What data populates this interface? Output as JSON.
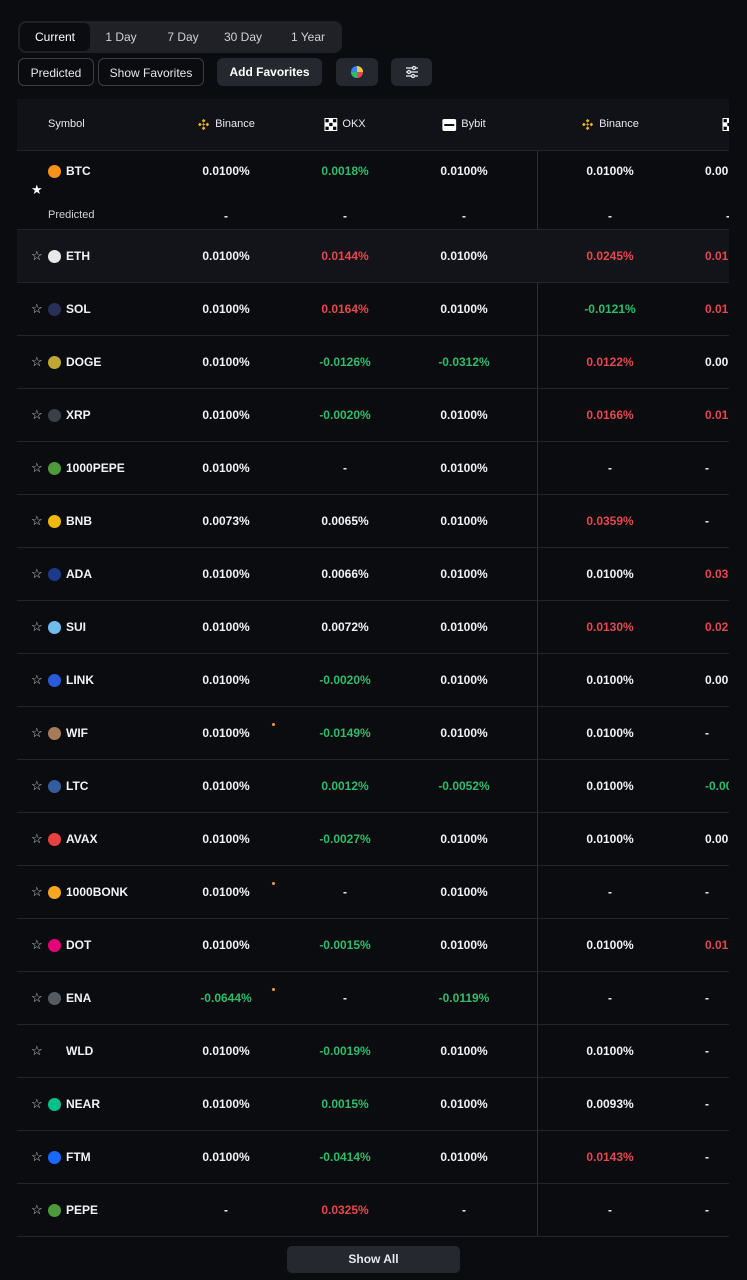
{
  "tabs": {
    "items": [
      "Current",
      "1 Day",
      "7 Day",
      "30 Day",
      "1 Year"
    ],
    "selected": 0
  },
  "toolbar": {
    "predicted": "Predicted",
    "show_favorites": "Show Favorites",
    "add_favorites": "Add Favorites"
  },
  "table": {
    "symbol_header": "Symbol",
    "columns": [
      {
        "label": "Binance",
        "icon": "binance"
      },
      {
        "label": "OKX",
        "icon": "okx"
      },
      {
        "label": "Bybit",
        "icon": "bybit"
      },
      {
        "label": "Binance",
        "icon": "binance"
      },
      {
        "icon": "okx"
      }
    ],
    "predicted_label": "Predicted",
    "rows": [
      {
        "symbol": "BTC",
        "icon": "#f7931a",
        "favorite": true,
        "cells": [
          {
            "text": "0.0100%",
            "color": "white"
          },
          {
            "text": "0.0018%",
            "color": "green"
          },
          {
            "text": "0.0100%",
            "color": "white"
          },
          {
            "text": "0.0100%",
            "color": "white"
          },
          {
            "text": "0.00",
            "color": "white"
          }
        ],
        "predicted": [
          "-",
          "-",
          "-",
          "-",
          "-"
        ]
      },
      {
        "symbol": "ETH",
        "icon": "#e8e8e8",
        "highlight": true,
        "cells": [
          {
            "text": "0.0100%",
            "color": "white"
          },
          {
            "text": "0.0144%",
            "color": "red"
          },
          {
            "text": "0.0100%",
            "color": "white"
          },
          {
            "text": "0.0245%",
            "color": "red"
          },
          {
            "text": "0.01",
            "color": "red"
          }
        ]
      },
      {
        "symbol": "SOL",
        "icon": "#2a2f5a",
        "cells": [
          {
            "text": "0.0100%",
            "color": "white"
          },
          {
            "text": "0.0164%",
            "color": "red"
          },
          {
            "text": "0.0100%",
            "color": "white"
          },
          {
            "text": "-0.0121%",
            "color": "green"
          },
          {
            "text": "0.01",
            "color": "red"
          }
        ]
      },
      {
        "symbol": "DOGE",
        "icon": "#c2a633",
        "cells": [
          {
            "text": "0.0100%",
            "color": "white"
          },
          {
            "text": "-0.0126%",
            "color": "green"
          },
          {
            "text": "-0.0312%",
            "color": "green"
          },
          {
            "text": "0.0122%",
            "color": "red"
          },
          {
            "text": "0.00",
            "color": "white"
          }
        ]
      },
      {
        "symbol": "XRP",
        "icon": "#3a3f4a",
        "cells": [
          {
            "text": "0.0100%",
            "color": "white"
          },
          {
            "text": "-0.0020%",
            "color": "green"
          },
          {
            "text": "0.0100%",
            "color": "white"
          },
          {
            "text": "0.0166%",
            "color": "red"
          },
          {
            "text": "0.01",
            "color": "red"
          }
        ]
      },
      {
        "symbol": "1000PEPE",
        "icon": "#4c9a3c",
        "cells": [
          {
            "text": "0.0100%",
            "color": "white"
          },
          {
            "text": "-",
            "color": "white"
          },
          {
            "text": "0.0100%",
            "color": "white"
          },
          {
            "text": "-",
            "color": "white"
          },
          {
            "text": "-",
            "color": "white"
          }
        ]
      },
      {
        "symbol": "BNB",
        "icon": "#f0b90b",
        "cells": [
          {
            "text": "0.0073%",
            "color": "white"
          },
          {
            "text": "0.0065%",
            "color": "white"
          },
          {
            "text": "0.0100%",
            "color": "white"
          },
          {
            "text": "0.0359%",
            "color": "red"
          },
          {
            "text": "-",
            "color": "white"
          }
        ]
      },
      {
        "symbol": "ADA",
        "icon": "#1d3a8a",
        "cells": [
          {
            "text": "0.0100%",
            "color": "white"
          },
          {
            "text": "0.0066%",
            "color": "white"
          },
          {
            "text": "0.0100%",
            "color": "white"
          },
          {
            "text": "0.0100%",
            "color": "white"
          },
          {
            "text": "0.03",
            "color": "red"
          }
        ]
      },
      {
        "symbol": "SUI",
        "icon": "#6fbcf0",
        "cells": [
          {
            "text": "0.0100%",
            "color": "white"
          },
          {
            "text": "0.0072%",
            "color": "white"
          },
          {
            "text": "0.0100%",
            "color": "white"
          },
          {
            "text": "0.0130%",
            "color": "red"
          },
          {
            "text": "0.02",
            "color": "red"
          }
        ]
      },
      {
        "symbol": "LINK",
        "icon": "#2a5ada",
        "cells": [
          {
            "text": "0.0100%",
            "color": "white"
          },
          {
            "text": "-0.0020%",
            "color": "green"
          },
          {
            "text": "0.0100%",
            "color": "white"
          },
          {
            "text": "0.0100%",
            "color": "white"
          },
          {
            "text": "0.00",
            "color": "white"
          }
        ]
      },
      {
        "symbol": "WIF",
        "icon": "#a57b5a",
        "cells": [
          {
            "text": "0.0100%",
            "color": "white",
            "dot": true
          },
          {
            "text": "-0.0149%",
            "color": "green"
          },
          {
            "text": "0.0100%",
            "color": "white"
          },
          {
            "text": "0.0100%",
            "color": "white"
          },
          {
            "text": "-",
            "color": "white"
          }
        ]
      },
      {
        "symbol": "LTC",
        "icon": "#345d9d",
        "cells": [
          {
            "text": "0.0100%",
            "color": "white"
          },
          {
            "text": "0.0012%",
            "color": "green"
          },
          {
            "text": "-0.0052%",
            "color": "green"
          },
          {
            "text": "0.0100%",
            "color": "white"
          },
          {
            "text": "-0.00",
            "color": "green"
          }
        ]
      },
      {
        "symbol": "AVAX",
        "icon": "#e84142",
        "cells": [
          {
            "text": "0.0100%",
            "color": "white"
          },
          {
            "text": "-0.0027%",
            "color": "green"
          },
          {
            "text": "0.0100%",
            "color": "white"
          },
          {
            "text": "0.0100%",
            "color": "white"
          },
          {
            "text": "0.00",
            "color": "white"
          }
        ]
      },
      {
        "symbol": "1000BONK",
        "icon": "#f5a623",
        "cells": [
          {
            "text": "0.0100%",
            "color": "white",
            "dot": true
          },
          {
            "text": "-",
            "color": "white"
          },
          {
            "text": "0.0100%",
            "color": "white"
          },
          {
            "text": "-",
            "color": "white"
          },
          {
            "text": "-",
            "color": "white"
          }
        ]
      },
      {
        "symbol": "DOT",
        "icon": "#e6007a",
        "cells": [
          {
            "text": "0.0100%",
            "color": "white"
          },
          {
            "text": "-0.0015%",
            "color": "green"
          },
          {
            "text": "0.0100%",
            "color": "white"
          },
          {
            "text": "0.0100%",
            "color": "white"
          },
          {
            "text": "0.01",
            "color": "red"
          }
        ]
      },
      {
        "symbol": "ENA",
        "icon": "#555a63",
        "cells": [
          {
            "text": "-0.0644%",
            "color": "green",
            "dot": true
          },
          {
            "text": "-",
            "color": "white"
          },
          {
            "text": "-0.0119%",
            "color": "green"
          },
          {
            "text": "-",
            "color": "white"
          },
          {
            "text": "-",
            "color": "white"
          }
        ]
      },
      {
        "symbol": "WLD",
        "icon": "none",
        "cells": [
          {
            "text": "0.0100%",
            "color": "white"
          },
          {
            "text": "-0.0019%",
            "color": "green"
          },
          {
            "text": "0.0100%",
            "color": "white"
          },
          {
            "text": "0.0100%",
            "color": "white"
          },
          {
            "text": "-",
            "color": "white"
          }
        ]
      },
      {
        "symbol": "NEAR",
        "icon": "#00c08b",
        "cells": [
          {
            "text": "0.0100%",
            "color": "white"
          },
          {
            "text": "0.0015%",
            "color": "green"
          },
          {
            "text": "0.0100%",
            "color": "white"
          },
          {
            "text": "0.0093%",
            "color": "white"
          },
          {
            "text": "-",
            "color": "white"
          }
        ]
      },
      {
        "symbol": "FTM",
        "icon": "#1969ff",
        "cells": [
          {
            "text": "0.0100%",
            "color": "white"
          },
          {
            "text": "-0.0414%",
            "color": "green"
          },
          {
            "text": "0.0100%",
            "color": "white"
          },
          {
            "text": "0.0143%",
            "color": "red"
          },
          {
            "text": "-",
            "color": "white"
          }
        ]
      },
      {
        "symbol": "PEPE",
        "icon": "#4c9a3c",
        "cells": [
          {
            "text": "-",
            "color": "white"
          },
          {
            "text": "0.0325%",
            "color": "red"
          },
          {
            "text": "-",
            "color": "white"
          },
          {
            "text": "-",
            "color": "white"
          },
          {
            "text": "-",
            "color": "white"
          }
        ]
      }
    ]
  },
  "show_all": "Show All"
}
